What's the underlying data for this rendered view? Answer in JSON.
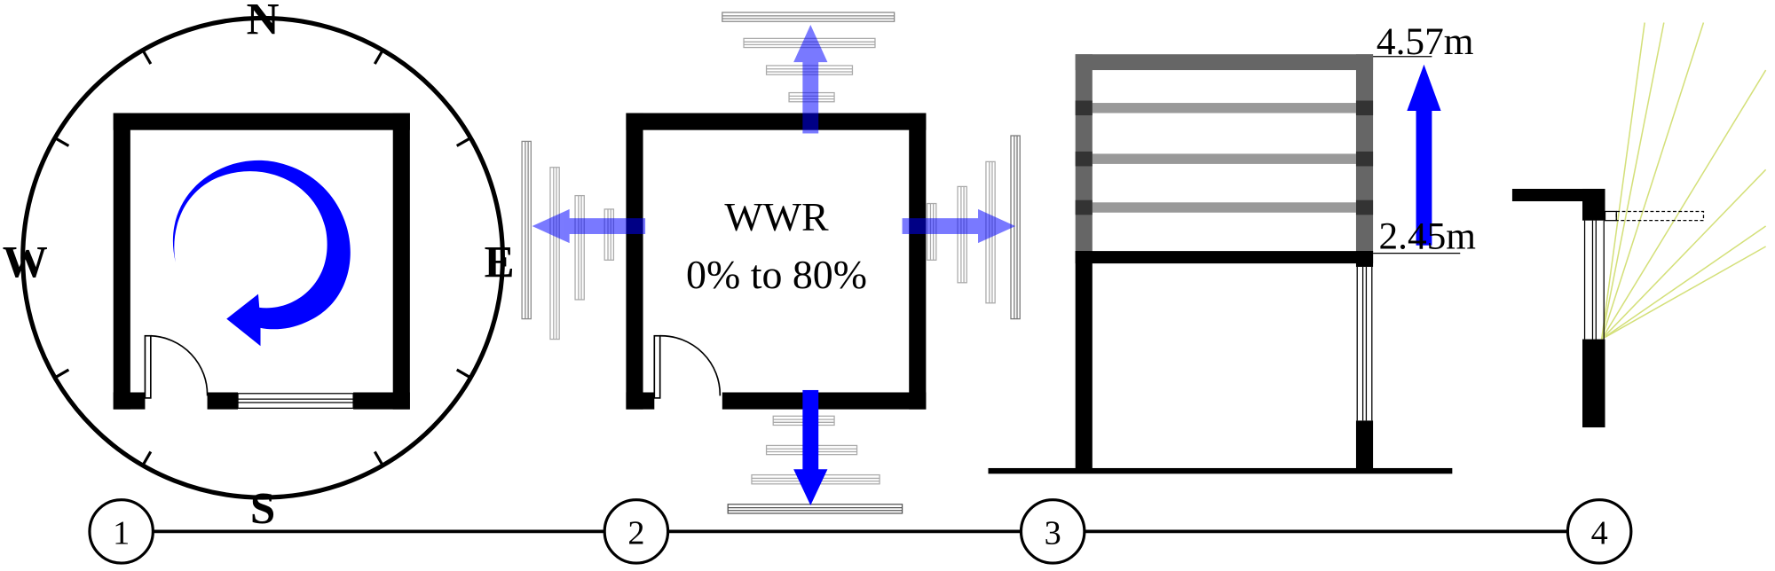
{
  "compass": {
    "north": "N",
    "south": "S",
    "east": "E",
    "west": "W"
  },
  "panel2": {
    "line1": "WWR",
    "line2": "0% to 80%"
  },
  "panel3": {
    "top_height": "4.57m",
    "bottom_height": "2.45m"
  },
  "steps": [
    "1",
    "2",
    "3",
    "4"
  ],
  "colors": {
    "wall": "#000000",
    "arrow_dark": "#0000ff",
    "arrow_light": "#7b7bf5",
    "frame_gray": "#666666",
    "slat_gray": "#999999",
    "sun_rays": "#d4e07a"
  }
}
